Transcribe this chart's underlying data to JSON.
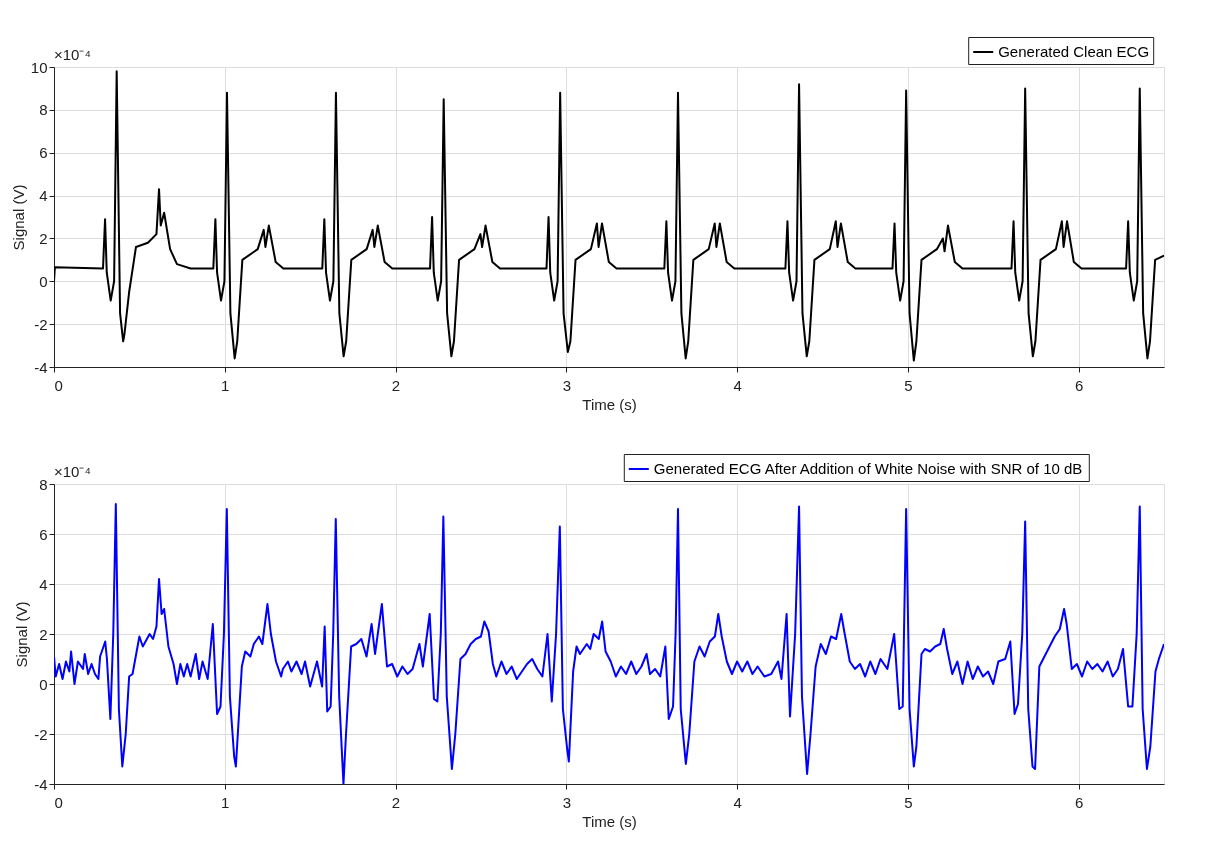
{
  "chart_data": [
    {
      "type": "line",
      "xlabel": "Time (s)",
      "ylabel": "Signal (V)",
      "annotations": [
        "×10⁻⁴"
      ],
      "xlim": [
        0,
        6.5
      ],
      "xticks": [
        0,
        1,
        2,
        3,
        4,
        5,
        6
      ],
      "ylim": [
        -4,
        10
      ],
      "yticks": [
        -4,
        -2,
        0,
        2,
        4,
        6,
        8,
        10
      ],
      "grid": true,
      "legend": "top right",
      "marker": "none",
      "line_style": "solid",
      "series": [
        {
          "name": "Generated Clean ECG",
          "color": "#000000",
          "x": [
            0,
            0.005,
            0.287,
            0.299,
            0.309,
            0.332,
            0.352,
            0.367,
            0.387,
            0.405,
            0.412,
            0.44,
            0.48,
            0.55,
            0.6,
            0.615,
            0.625,
            0.645,
            0.68,
            0.72,
            0.8,
            0.933,
            0.945,
            0.955,
            0.978,
            0.998,
            1.013,
            1.033,
            1.058,
            1.073,
            1.103,
            1.193,
            1.228,
            1.238,
            1.258,
            1.298,
            1.343,
            1.571,
            1.583,
            1.593,
            1.616,
            1.636,
            1.651,
            1.671,
            1.696,
            1.711,
            1.741,
            1.831,
            1.866,
            1.876,
            1.896,
            1.936,
            1.981,
            2.202,
            2.214,
            2.224,
            2.247,
            2.267,
            2.282,
            2.302,
            2.327,
            2.342,
            2.372,
            2.462,
            2.497,
            2.507,
            2.527,
            2.567,
            2.612,
            2.884,
            2.896,
            2.906,
            2.929,
            2.949,
            2.964,
            2.984,
            3.009,
            3.024,
            3.054,
            3.144,
            3.179,
            3.189,
            3.209,
            3.249,
            3.294,
            3.574,
            3.586,
            3.596,
            3.619,
            3.639,
            3.654,
            3.674,
            3.699,
            3.714,
            3.744,
            3.834,
            3.869,
            3.879,
            3.899,
            3.939,
            3.984,
            4.283,
            4.295,
            4.305,
            4.328,
            4.348,
            4.363,
            4.383,
            4.408,
            4.423,
            4.453,
            4.543,
            4.578,
            4.588,
            4.608,
            4.648,
            4.693,
            4.91,
            4.922,
            4.932,
            4.955,
            4.975,
            4.99,
            5.01,
            5.035,
            5.05,
            5.08,
            5.17,
            5.205,
            5.215,
            5.235,
            5.275,
            5.32,
            5.607,
            5.619,
            5.629,
            5.652,
            5.672,
            5.687,
            5.707,
            5.732,
            5.747,
            5.777,
            5.867,
            5.902,
            5.912,
            5.932,
            5.972,
            6.017,
            6.278,
            6.29,
            6.3,
            6.323,
            6.343,
            6.358,
            6.378,
            6.403,
            6.418,
            6.448,
            6.5
          ],
          "values": [
            0,
            0.65,
            0.6,
            2.9,
            0.4,
            -0.9,
            0,
            9.8,
            -1.5,
            -2.8,
            -2.5,
            -0.5,
            1.6,
            1.8,
            2.2,
            4.3,
            2.6,
            3.2,
            1.5,
            0.8,
            0.6,
            0.6,
            2.9,
            0.4,
            -0.9,
            0,
            8.8,
            -1.5,
            -3.6,
            -2.8,
            1.0,
            1.5,
            2.4,
            1.6,
            2.6,
            0.9,
            0.6,
            0.6,
            2.9,
            0.4,
            -0.9,
            0,
            8.8,
            -1.5,
            -3.5,
            -2.8,
            1.0,
            1.5,
            2.4,
            1.6,
            2.6,
            0.9,
            0.6,
            0.6,
            3.0,
            0.4,
            -0.9,
            0,
            8.5,
            -1.5,
            -3.5,
            -2.8,
            1.0,
            1.5,
            2.2,
            1.6,
            2.6,
            0.9,
            0.6,
            0.6,
            3.0,
            0.4,
            -0.9,
            0,
            8.8,
            -1.5,
            -3.3,
            -2.8,
            1.0,
            1.5,
            2.7,
            1.6,
            2.7,
            0.9,
            0.6,
            0.6,
            2.8,
            0.4,
            -0.9,
            0,
            8.8,
            -1.5,
            -3.6,
            -2.8,
            1.0,
            1.5,
            2.7,
            1.6,
            2.7,
            0.9,
            0.6,
            0.6,
            2.8,
            0.4,
            -0.9,
            0,
            9.2,
            -1.5,
            -3.5,
            -2.8,
            1.0,
            1.5,
            2.8,
            1.6,
            2.7,
            0.9,
            0.6,
            0.6,
            2.7,
            0.4,
            -0.9,
            0,
            8.9,
            -1.5,
            -3.7,
            -2.8,
            1.0,
            1.5,
            2.0,
            1.4,
            2.6,
            0.9,
            0.6,
            0.6,
            2.8,
            0.4,
            -0.9,
            0,
            9.0,
            -1.5,
            -3.5,
            -2.8,
            1.0,
            1.5,
            2.8,
            1.6,
            2.8,
            0.9,
            0.6,
            0.6,
            2.8,
            0.4,
            -0.9,
            0,
            9.0,
            -1.5,
            -3.6,
            -2.8,
            1.0,
            1.2
          ]
        }
      ]
    },
    {
      "type": "line",
      "xlabel": "Time (s)",
      "ylabel": "Signal (V)",
      "annotations": [
        "×10⁻⁴"
      ],
      "xlim": [
        0,
        6.5
      ],
      "xticks": [
        0,
        1,
        2,
        3,
        4,
        5,
        6
      ],
      "ylim": [
        -4,
        8
      ],
      "yticks": [
        -4,
        -2,
        0,
        2,
        4,
        6,
        8
      ],
      "grid": true,
      "legend": "top right",
      "marker": "none",
      "line_style": "solid",
      "series": [
        {
          "name": "Generated ECG After Addition of White Noise with SNR of 10 dB",
          "color": "#0000ff",
          "x": [
            0,
            0.01,
            0.03,
            0.05,
            0.07,
            0.09,
            0.1,
            0.12,
            0.14,
            0.17,
            0.18,
            0.2,
            0.22,
            0.24,
            0.26,
            0.27,
            0.3,
            0.31,
            0.33,
            0.347,
            0.362,
            0.38,
            0.4,
            0.42,
            0.44,
            0.46,
            0.5,
            0.52,
            0.56,
            0.58,
            0.6,
            0.615,
            0.63,
            0.645,
            0.67,
            0.7,
            0.72,
            0.74,
            0.76,
            0.78,
            0.8,
            0.83,
            0.85,
            0.87,
            0.9,
            0.93,
            0.955,
            0.975,
            0.995,
            1.012,
            1.03,
            1.055,
            1.065,
            1.1,
            1.12,
            1.15,
            1.17,
            1.2,
            1.22,
            1.25,
            1.27,
            1.3,
            1.33,
            1.34,
            1.37,
            1.39,
            1.42,
            1.45,
            1.47,
            1.5,
            1.54,
            1.57,
            1.585,
            1.6,
            1.62,
            1.635,
            1.65,
            1.67,
            1.695,
            1.71,
            1.74,
            1.77,
            1.8,
            1.83,
            1.86,
            1.88,
            1.92,
            1.95,
            1.98,
            2.01,
            2.04,
            2.07,
            2.1,
            2.14,
            2.16,
            2.2,
            2.225,
            2.245,
            2.265,
            2.28,
            2.3,
            2.33,
            2.35,
            2.38,
            2.41,
            2.44,
            2.47,
            2.5,
            2.52,
            2.545,
            2.57,
            2.59,
            2.62,
            2.65,
            2.68,
            2.71,
            2.74,
            2.77,
            2.8,
            2.83,
            2.86,
            2.89,
            2.915,
            2.94,
            2.962,
            2.98,
            3.005,
            3.015,
            3.04,
            3.06,
            3.08,
            3.12,
            3.14,
            3.16,
            3.19,
            3.21,
            3.23,
            3.26,
            3.29,
            3.32,
            3.35,
            3.38,
            3.41,
            3.44,
            3.47,
            3.49,
            3.52,
            3.55,
            3.58,
            3.6,
            3.625,
            3.64,
            3.654,
            3.67,
            3.7,
            3.72,
            3.75,
            3.78,
            3.81,
            3.84,
            3.87,
            3.89,
            3.91,
            3.94,
            3.97,
            4.0,
            4.03,
            4.06,
            4.09,
            4.12,
            4.16,
            4.2,
            4.24,
            4.26,
            4.29,
            4.31,
            4.34,
            4.363,
            4.38,
            4.41,
            4.43,
            4.46,
            4.49,
            4.52,
            4.55,
            4.58,
            4.61,
            4.625,
            4.66,
            4.69,
            4.72,
            4.75,
            4.78,
            4.81,
            4.84,
            4.88,
            4.92,
            4.95,
            4.97,
            4.99,
            5.01,
            5.035,
            5.05,
            5.08,
            5.1,
            5.13,
            5.16,
            5.19,
            5.21,
            5.23,
            5.26,
            5.29,
            5.32,
            5.35,
            5.38,
            5.41,
            5.44,
            5.47,
            5.5,
            5.53,
            5.57,
            5.6,
            5.625,
            5.645,
            5.67,
            5.687,
            5.705,
            5.73,
            5.745,
            5.77,
            5.8,
            5.83,
            5.86,
            5.89,
            5.915,
            5.93,
            5.96,
            5.99,
            6.02,
            6.05,
            6.08,
            6.11,
            6.14,
            6.17,
            6.2,
            6.23,
            6.26,
            6.29,
            6.315,
            6.34,
            6.358,
            6.375,
            6.4,
            6.42,
            6.45,
            6.47,
            6.49,
            6.5
          ],
          "values": [
            1.1,
            0.3,
            0.8,
            0.2,
            0.9,
            0.5,
            1.3,
            0.0,
            0.9,
            0.6,
            1.2,
            0.4,
            0.8,
            0.4,
            0.2,
            1.1,
            1.7,
            1.0,
            -1.4,
            2.0,
            7.2,
            -1.0,
            -3.3,
            -2.0,
            0.3,
            0.4,
            1.9,
            1.5,
            2.0,
            1.8,
            2.3,
            4.2,
            2.8,
            3.0,
            1.5,
            0.8,
            0.0,
            0.8,
            0.3,
            0.8,
            0.3,
            1.2,
            0.2,
            0.9,
            0.2,
            2.4,
            -1.2,
            -0.9,
            2.0,
            7.0,
            -0.5,
            -2.9,
            -3.3,
            0.7,
            1.3,
            1.1,
            1.6,
            1.9,
            1.6,
            3.2,
            2.0,
            0.9,
            0.3,
            0.6,
            0.9,
            0.5,
            0.9,
            0.4,
            0.9,
            -0.1,
            0.9,
            -0.1,
            2.3,
            -1.1,
            -0.9,
            2.0,
            6.6,
            -0.5,
            -4.0,
            -2.0,
            1.5,
            1.6,
            1.8,
            1.1,
            2.4,
            1.2,
            3.2,
            0.7,
            0.8,
            0.3,
            0.7,
            0.4,
            0.6,
            1.6,
            0.7,
            2.8,
            -0.6,
            -0.7,
            2.0,
            6.7,
            -0.5,
            -3.4,
            -2.0,
            1.0,
            1.2,
            1.6,
            1.8,
            1.9,
            2.5,
            2.1,
            0.8,
            0.3,
            0.9,
            0.4,
            0.7,
            0.2,
            0.5,
            0.8,
            1.0,
            0.6,
            0.3,
            2.0,
            -0.7,
            2.0,
            6.3,
            -1.0,
            -2.6,
            -3.1,
            0.5,
            1.5,
            1.2,
            1.6,
            1.4,
            2.0,
            1.8,
            2.5,
            1.3,
            0.9,
            0.3,
            0.7,
            0.4,
            0.9,
            0.4,
            0.7,
            1.2,
            0.4,
            0.6,
            0.3,
            1.5,
            -1.4,
            -0.9,
            2.0,
            7.0,
            -1.0,
            -3.2,
            -2.0,
            0.9,
            1.5,
            1.1,
            1.7,
            1.9,
            2.8,
            1.9,
            0.9,
            0.4,
            0.9,
            0.5,
            0.9,
            0.4,
            0.7,
            0.3,
            0.4,
            0.9,
            0.2,
            2.8,
            -1.3,
            2.0,
            7.1,
            -0.5,
            -3.6,
            -2.0,
            0.7,
            1.6,
            1.2,
            1.9,
            1.8,
            2.8,
            2.2,
            0.9,
            0.6,
            0.8,
            0.3,
            0.9,
            0.4,
            1.0,
            0.6,
            2.0,
            -1.0,
            -0.9,
            7.0,
            -1.0,
            -3.3,
            -2.5,
            1.2,
            1.4,
            1.3,
            1.5,
            1.6,
            2.2,
            1.4,
            0.4,
            0.9,
            0.0,
            0.9,
            0.2,
            0.7,
            0.3,
            0.5,
            0.0,
            0.9,
            1.0,
            1.7,
            -1.2,
            -0.8,
            2.0,
            6.5,
            -1.0,
            -3.3,
            -3.4,
            0.7,
            1.1,
            1.5,
            1.9,
            2.2,
            3.0,
            2.4,
            0.6,
            0.8,
            0.3,
            0.9,
            0.6,
            0.8,
            0.5,
            0.9,
            0.3,
            0.6,
            1.4,
            -0.9,
            -0.9,
            2.0,
            7.1,
            -1.0,
            -3.4,
            -2.5,
            0.5,
            1.0,
            1.4,
            1.6
          ]
        }
      ]
    }
  ]
}
